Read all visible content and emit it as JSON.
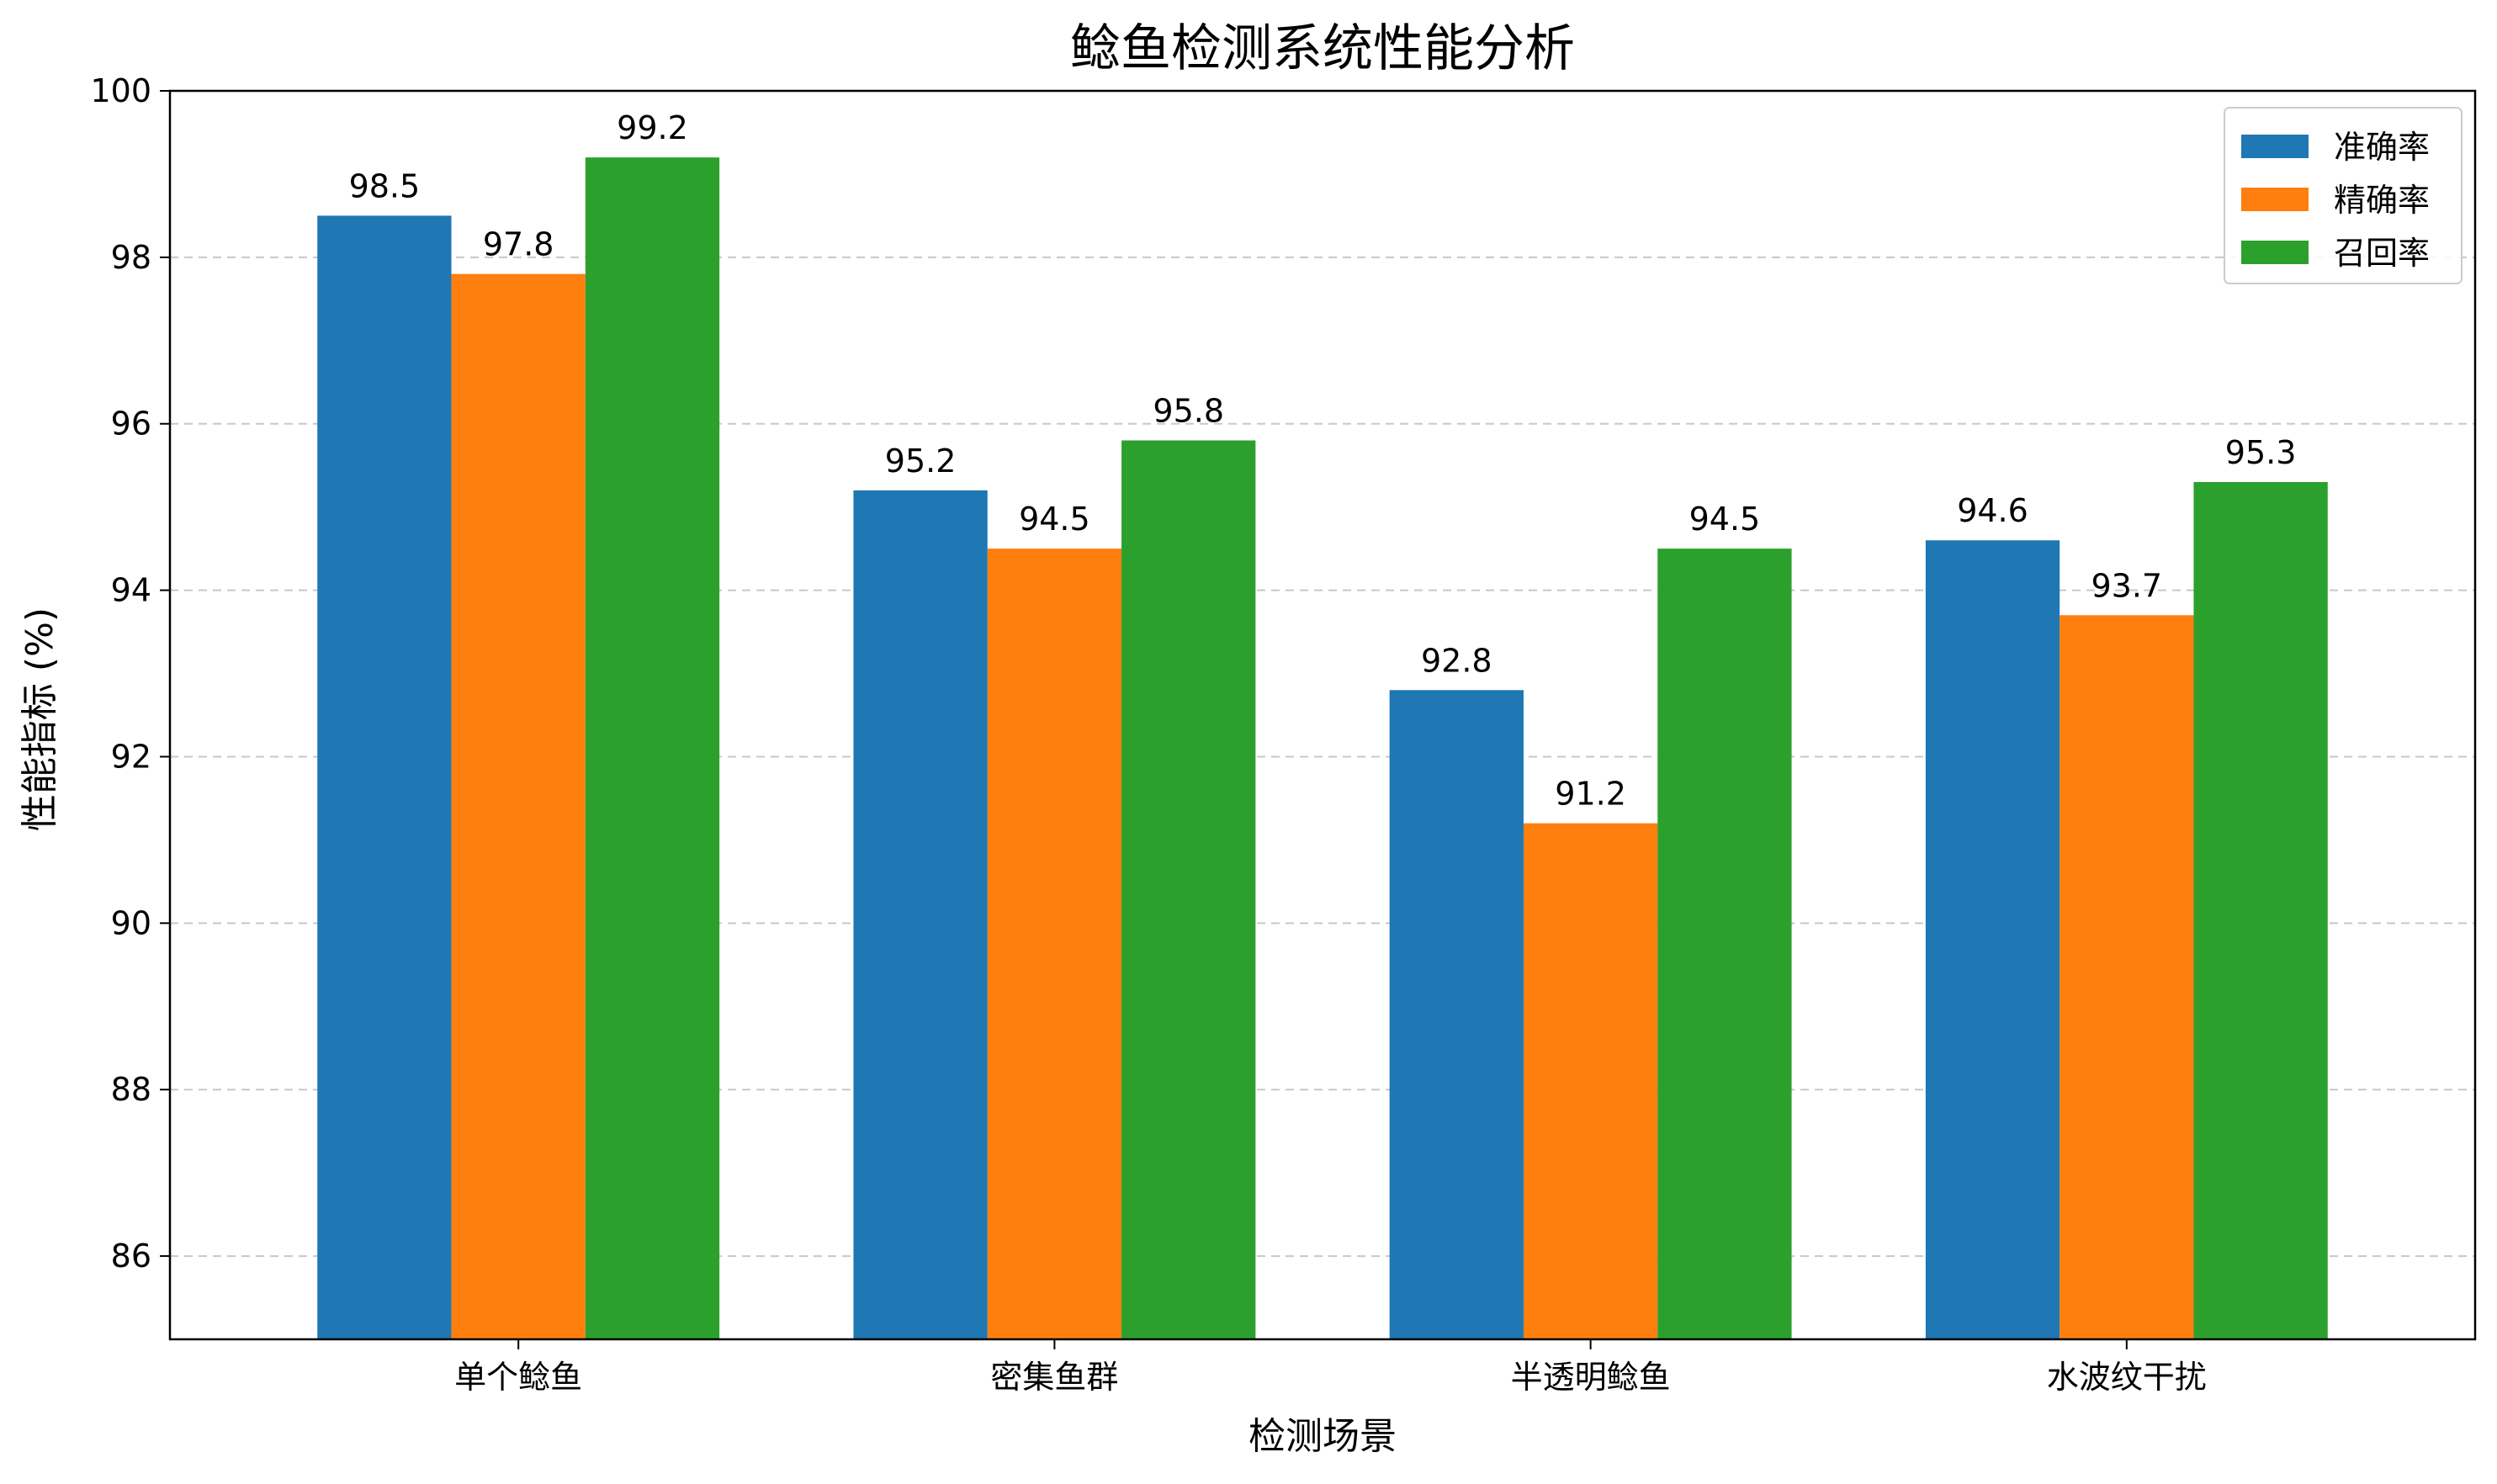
{
  "chart_data": {
    "type": "bar",
    "title": "鲶鱼检测系统性能分析",
    "xlabel": "检测场景",
    "ylabel": "性能指标 (%)",
    "ylim": [
      85,
      100
    ],
    "yticks": [
      86,
      88,
      90,
      92,
      94,
      96,
      98,
      100
    ],
    "grid": "y-dashed",
    "legend_position": "top-right",
    "categories": [
      "单个鲶鱼",
      "密集鱼群",
      "半透明鲶鱼",
      "水波纹干扰"
    ],
    "series": [
      {
        "name": "准确率",
        "color": "#1f77b4",
        "values": [
          98.5,
          95.2,
          92.8,
          94.6
        ]
      },
      {
        "name": "精确率",
        "color": "#ff7f0e",
        "values": [
          97.8,
          94.5,
          91.2,
          93.7
        ]
      },
      {
        "name": "召回率",
        "color": "#2ca02c",
        "values": [
          99.2,
          95.8,
          94.5,
          95.3
        ]
      }
    ]
  }
}
